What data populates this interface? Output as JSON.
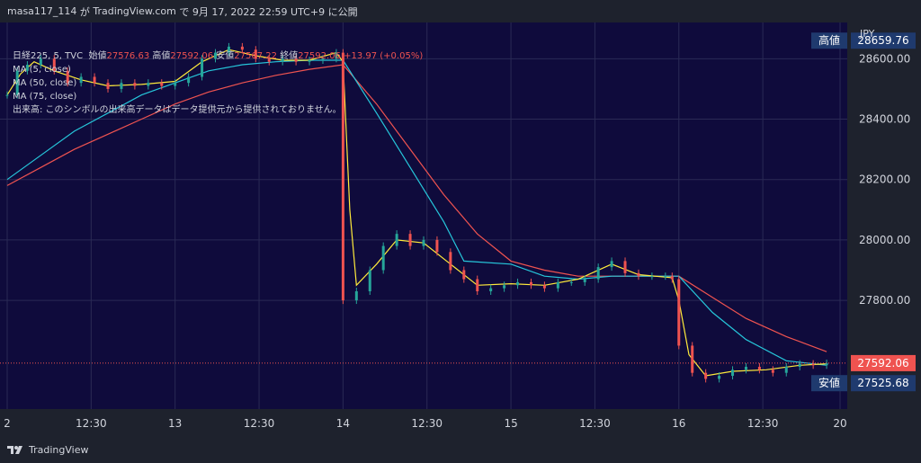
{
  "header": {
    "author": "masa117_114",
    "ga": "が",
    "platform": "TradingView.com",
    "de": "で",
    "date": "9月 17, 2022 22:59 UTC+9",
    "published": "に公開"
  },
  "legend": {
    "symbol": "日経225, 5, TVC",
    "open_label": "始値",
    "open": "27576.63",
    "high_label": "高値",
    "high": "27592.06",
    "low_label": "安値",
    "low": "27567.22",
    "close_label": "終値",
    "close": "27592.06",
    "change": "+13.97 (+0.05%)",
    "ma1": "MA (5, close)",
    "ma2": "MA (50, close)",
    "ma3": "MA (75, close)",
    "volume_note": "出来高: このシンボルの出来高データはデータ提供元から提供されておりません。"
  },
  "footer": {
    "brand": "TradingView"
  },
  "colors": {
    "background": "#0f0b3c",
    "up": "#26a69a",
    "down": "#ef5350",
    "ma5": "#ffeb3b",
    "ma50": "#26c6da",
    "ma75": "#ef5350",
    "text": "#d1d4dc"
  },
  "chart_data": {
    "type": "candlestick",
    "currency": "JPY",
    "ylim": [
      27440,
      28720
    ],
    "y_ticks": [
      "28600.00",
      "28400.00",
      "28200.00",
      "28000.00",
      "27800.00"
    ],
    "y_tick_values": [
      28600,
      28400,
      28200,
      28000,
      27800
    ],
    "x_ticks": [
      "2",
      "12:30",
      "13",
      "12:30",
      "14",
      "12:30",
      "15",
      "12:30",
      "16",
      "12:30",
      "20"
    ],
    "high_label": "高値",
    "high_value": "28659.76",
    "low_label": "安値",
    "low_value": "27525.68",
    "last_value": "27592.06",
    "close_series": [
      [
        0,
        28480
      ],
      [
        3,
        28560
      ],
      [
        6,
        28580
      ],
      [
        10,
        28600
      ],
      [
        14,
        28560
      ],
      [
        18,
        28520
      ],
      [
        22,
        28540
      ],
      [
        26,
        28520
      ],
      [
        30,
        28500
      ],
      [
        34,
        28520
      ],
      [
        38,
        28510
      ],
      [
        42,
        28520
      ],
      [
        46,
        28510
      ],
      [
        50,
        28520
      ],
      [
        54,
        28540
      ],
      [
        58,
        28600
      ],
      [
        62,
        28620
      ],
      [
        66,
        28640
      ],
      [
        70,
        28630
      ],
      [
        74,
        28600
      ],
      [
        78,
        28590
      ],
      [
        82,
        28600
      ],
      [
        86,
        28590
      ],
      [
        90,
        28595
      ],
      [
        94,
        28600
      ],
      [
        98,
        28620
      ],
      [
        100,
        27800
      ],
      [
        104,
        27830
      ],
      [
        108,
        27900
      ],
      [
        112,
        27980
      ],
      [
        116,
        28020
      ],
      [
        120,
        27980
      ],
      [
        124,
        28000
      ],
      [
        128,
        27960
      ],
      [
        132,
        27900
      ],
      [
        136,
        27870
      ],
      [
        140,
        27830
      ],
      [
        144,
        27840
      ],
      [
        148,
        27850
      ],
      [
        152,
        27860
      ],
      [
        156,
        27850
      ],
      [
        160,
        27840
      ],
      [
        164,
        27860
      ],
      [
        168,
        27860
      ],
      [
        172,
        27870
      ],
      [
        176,
        27910
      ],
      [
        180,
        27930
      ],
      [
        184,
        27890
      ],
      [
        188,
        27880
      ],
      [
        192,
        27880
      ],
      [
        196,
        27880
      ],
      [
        198,
        27870
      ],
      [
        200,
        27650
      ],
      [
        204,
        27560
      ],
      [
        208,
        27540
      ],
      [
        212,
        27550
      ],
      [
        216,
        27570
      ],
      [
        220,
        27580
      ],
      [
        224,
        27570
      ],
      [
        228,
        27560
      ],
      [
        232,
        27580
      ],
      [
        236,
        27590
      ],
      [
        240,
        27585
      ],
      [
        244,
        27592
      ]
    ],
    "ma5_series": [
      [
        0,
        28480
      ],
      [
        4,
        28550
      ],
      [
        8,
        28590
      ],
      [
        14,
        28560
      ],
      [
        22,
        28530
      ],
      [
        30,
        28510
      ],
      [
        40,
        28515
      ],
      [
        50,
        28525
      ],
      [
        58,
        28590
      ],
      [
        66,
        28630
      ],
      [
        74,
        28610
      ],
      [
        82,
        28595
      ],
      [
        90,
        28595
      ],
      [
        98,
        28620
      ],
      [
        100,
        28590
      ],
      [
        102,
        28100
      ],
      [
        104,
        27850
      ],
      [
        110,
        27920
      ],
      [
        116,
        28000
      ],
      [
        124,
        27990
      ],
      [
        132,
        27920
      ],
      [
        140,
        27850
      ],
      [
        150,
        27855
      ],
      [
        160,
        27850
      ],
      [
        170,
        27870
      ],
      [
        180,
        27920
      ],
      [
        188,
        27885
      ],
      [
        198,
        27875
      ],
      [
        200,
        27800
      ],
      [
        203,
        27620
      ],
      [
        208,
        27550
      ],
      [
        216,
        27565
      ],
      [
        226,
        27570
      ],
      [
        236,
        27585
      ],
      [
        244,
        27590
      ]
    ],
    "ma50_series": [
      [
        0,
        28200
      ],
      [
        10,
        28280
      ],
      [
        20,
        28360
      ],
      [
        30,
        28420
      ],
      [
        40,
        28480
      ],
      [
        50,
        28520
      ],
      [
        60,
        28560
      ],
      [
        70,
        28580
      ],
      [
        80,
        28590
      ],
      [
        90,
        28595
      ],
      [
        100,
        28595
      ],
      [
        110,
        28420
      ],
      [
        120,
        28240
      ],
      [
        130,
        28060
      ],
      [
        136,
        27930
      ],
      [
        150,
        27920
      ],
      [
        160,
        27880
      ],
      [
        170,
        27870
      ],
      [
        180,
        27880
      ],
      [
        190,
        27880
      ],
      [
        200,
        27880
      ],
      [
        210,
        27760
      ],
      [
        220,
        27670
      ],
      [
        232,
        27600
      ],
      [
        244,
        27585
      ]
    ],
    "ma75_series": [
      [
        0,
        28180
      ],
      [
        10,
        28240
      ],
      [
        20,
        28300
      ],
      [
        30,
        28350
      ],
      [
        40,
        28400
      ],
      [
        50,
        28450
      ],
      [
        60,
        28490
      ],
      [
        70,
        28520
      ],
      [
        80,
        28545
      ],
      [
        90,
        28565
      ],
      [
        100,
        28580
      ],
      [
        110,
        28450
      ],
      [
        120,
        28300
      ],
      [
        130,
        28150
      ],
      [
        140,
        28020
      ],
      [
        150,
        27930
      ],
      [
        160,
        27900
      ],
      [
        170,
        27880
      ],
      [
        180,
        27880
      ],
      [
        190,
        27880
      ],
      [
        200,
        27880
      ],
      [
        210,
        27810
      ],
      [
        220,
        27740
      ],
      [
        232,
        27680
      ],
      [
        244,
        27630
      ]
    ]
  }
}
